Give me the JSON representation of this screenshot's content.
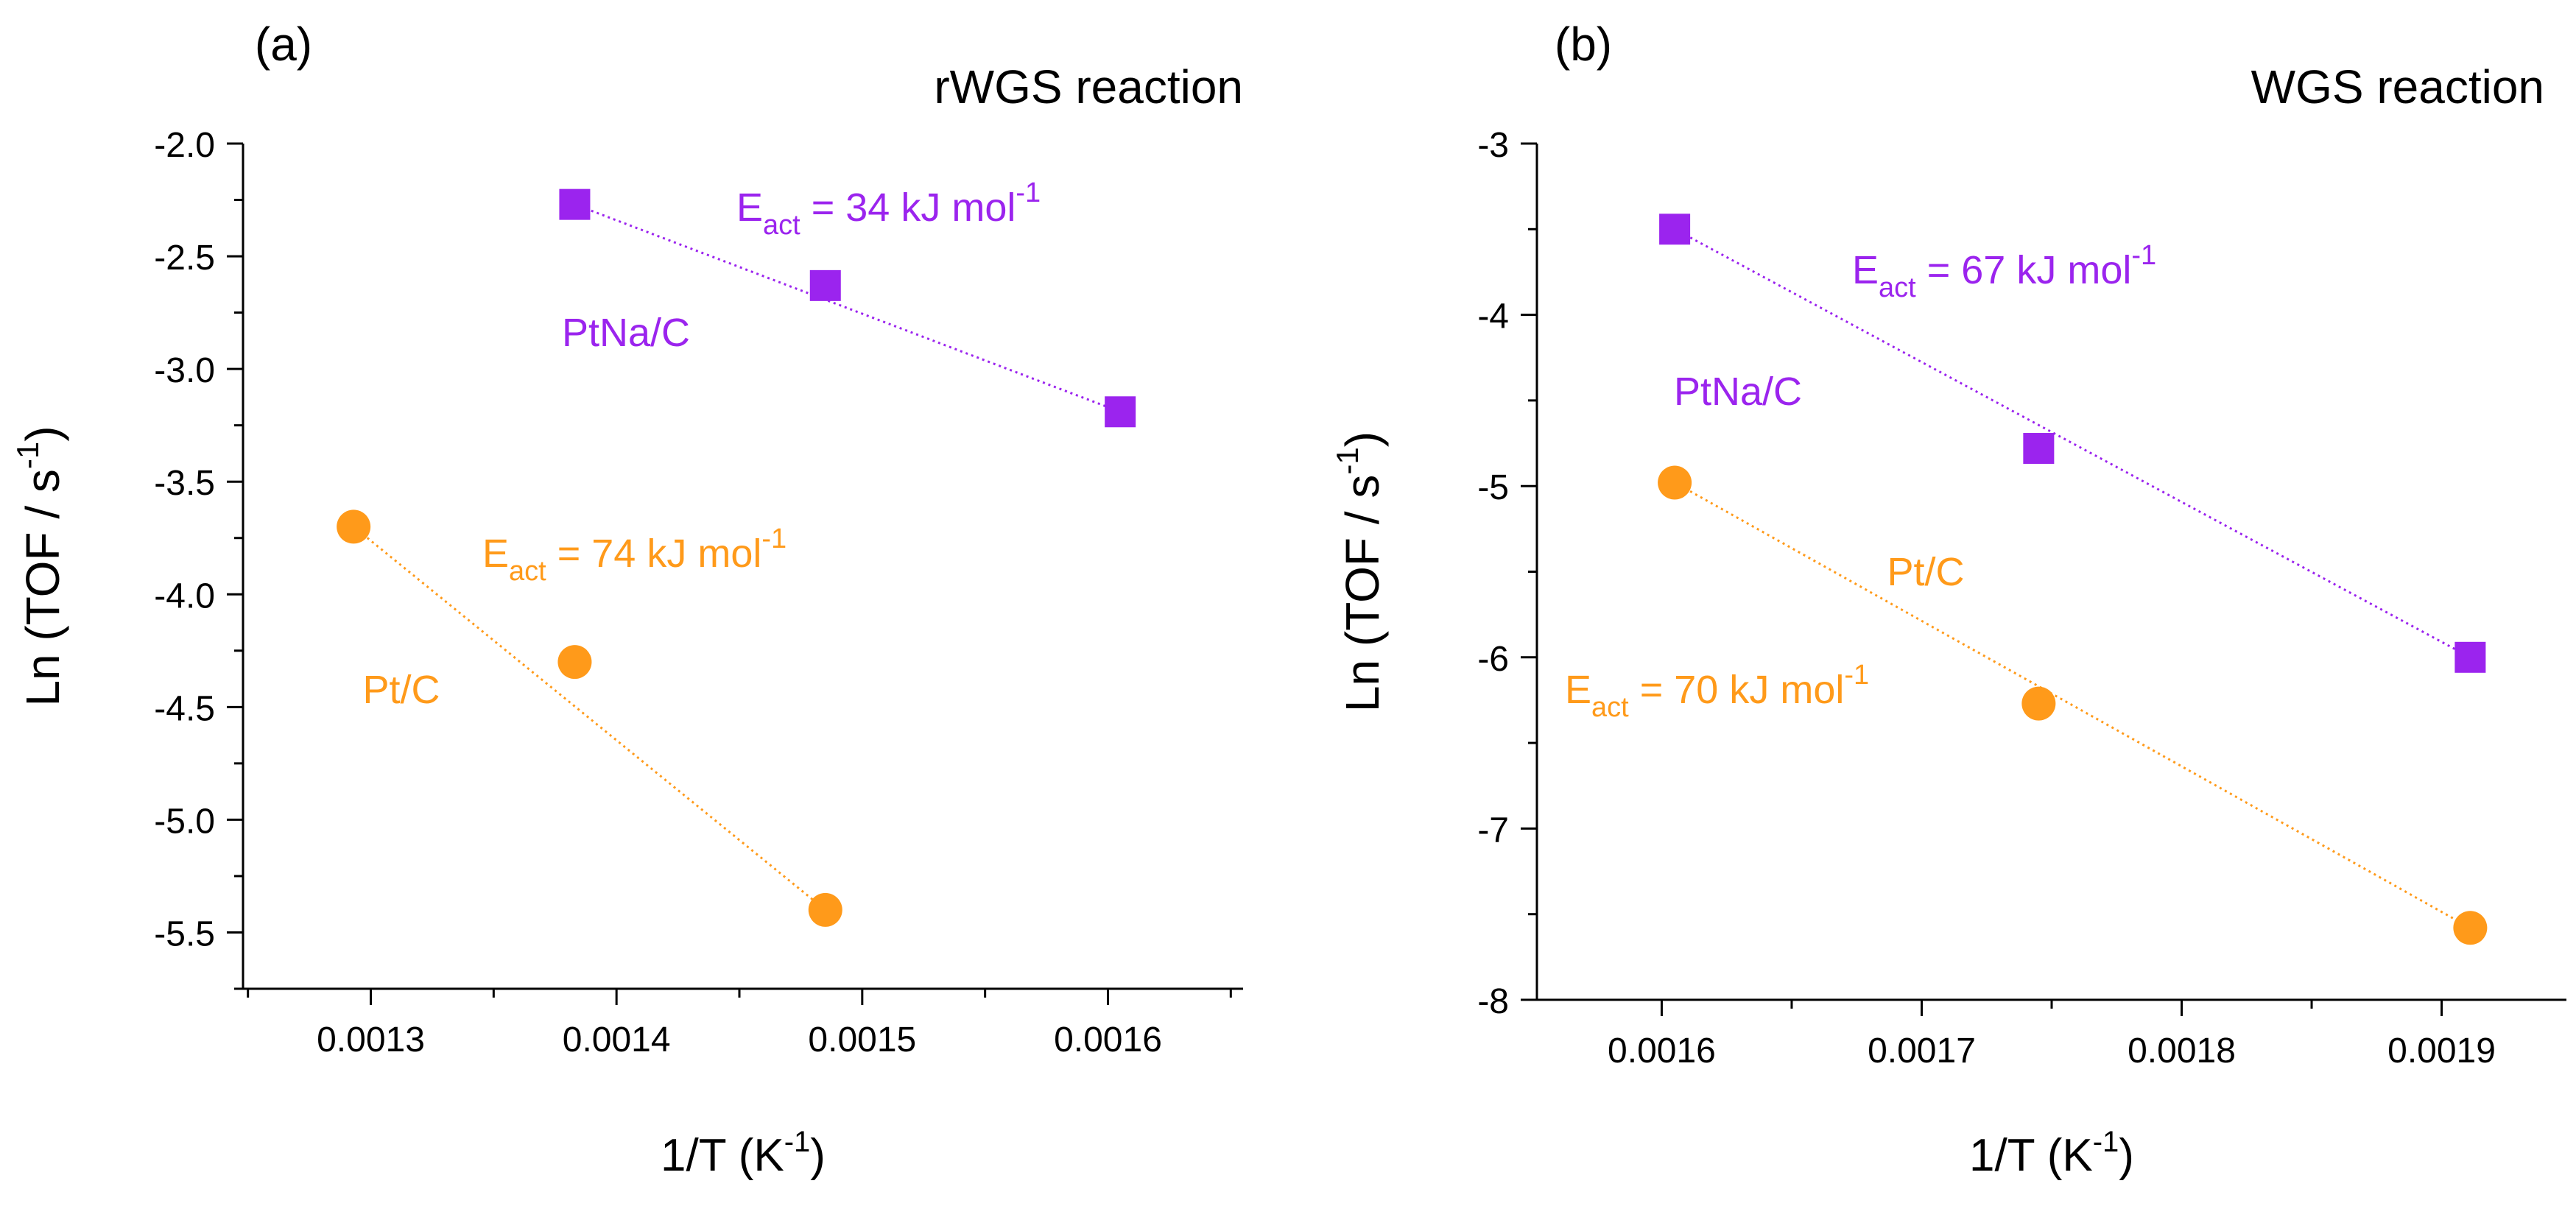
{
  "colors": {
    "purple": "#9b24ee",
    "orange": "#ff9a1a",
    "axis": "#000000",
    "text": "#000000"
  },
  "chart_data": [
    {
      "type": "scatter",
      "panel_label": "(a)",
      "title": "rWGS reaction",
      "xlabel": "1/T (K",
      "xlabel_sup": "-1",
      "xlabel_end": ")",
      "ylabel": "Ln (TOF / s",
      "ylabel_sup": "-1",
      "ylabel_end": ")",
      "xlim": [
        0.001248,
        0.001655
      ],
      "ylim": [
        -5.75,
        -2.0
      ],
      "xticks": [
        0.0013,
        0.0014,
        0.0015,
        0.0016
      ],
      "xtick_labels": [
        "0.0013",
        "0.0014",
        "0.0015",
        "0.0016"
      ],
      "yticks": [
        -2.0,
        -2.5,
        -3.0,
        -3.5,
        -4.0,
        -4.5,
        -5.0,
        -5.5
      ],
      "ytick_labels": [
        "-2.0",
        "-2.5",
        "-3.0",
        "-3.5",
        "-4.0",
        "-4.5",
        "-5.0",
        "-5.5"
      ],
      "series": [
        {
          "name": "PtNa/C",
          "color": "purple",
          "marker": "square",
          "x": [
            0.001383,
            0.001485,
            0.001605
          ],
          "y": [
            -2.27,
            -2.63,
            -3.19
          ],
          "fit": [
            [
              0.001383,
              -2.27
            ],
            [
              0.001605,
              -3.19
            ]
          ],
          "label": "PtNa/C",
          "ea_prefix": "E",
          "ea_sub": "act",
          "ea_text": " = 34 kJ mol",
          "ea_sup": "-1"
        },
        {
          "name": "Pt/C",
          "color": "orange",
          "marker": "circle",
          "x": [
            0.001293,
            0.001383,
            0.001485
          ],
          "y": [
            -3.7,
            -4.3,
            -5.4
          ],
          "fit": [
            [
              0.001293,
              -3.7
            ],
            [
              0.001485,
              -5.4
            ]
          ],
          "label": "Pt/C",
          "ea_prefix": "E",
          "ea_sub": "act",
          "ea_text": " = 74 kJ mol",
          "ea_sup": "-1"
        }
      ]
    },
    {
      "type": "scatter",
      "panel_label": "(b)",
      "title": "WGS reaction",
      "xlabel": "1/T (K",
      "xlabel_sup": "-1",
      "xlabel_end": ")",
      "ylabel": "Ln (TOF / s",
      "ylabel_sup": "-1",
      "ylabel_end": ")",
      "xlim": [
        0.001552,
        0.001948
      ],
      "ylim": [
        -8.0,
        -3.0
      ],
      "xticks": [
        0.0016,
        0.0017,
        0.0018,
        0.0019
      ],
      "xtick_labels": [
        "0.0016",
        "0.0017",
        "0.0018",
        "0.0019"
      ],
      "yticks": [
        -3,
        -4,
        -5,
        -6,
        -7,
        -8
      ],
      "ytick_labels": [
        "-3",
        "-4",
        "-5",
        "-6",
        "-7",
        "-8"
      ],
      "series": [
        {
          "name": "PtNa/C",
          "color": "purple",
          "marker": "square",
          "x": [
            0.001605,
            0.001745,
            0.001911
          ],
          "y": [
            -3.5,
            -4.78,
            -6.0
          ],
          "fit": [
            [
              0.001605,
              -3.5
            ],
            [
              0.001911,
              -6.0
            ]
          ],
          "label": "PtNa/C",
          "ea_prefix": "E",
          "ea_sub": "act",
          "ea_text": " = 67 kJ mol",
          "ea_sup": "-1"
        },
        {
          "name": "Pt/C",
          "color": "orange",
          "marker": "circle",
          "x": [
            0.001605,
            0.001745,
            0.001911
          ],
          "y": [
            -4.98,
            -6.27,
            -7.58
          ],
          "fit": [
            [
              0.001605,
              -4.98
            ],
            [
              0.001911,
              -7.58
            ]
          ],
          "label": "Pt/C",
          "ea_prefix": "E",
          "ea_sub": "act",
          "ea_text": " = 70 kJ mol",
          "ea_sup": "-1"
        }
      ]
    }
  ]
}
